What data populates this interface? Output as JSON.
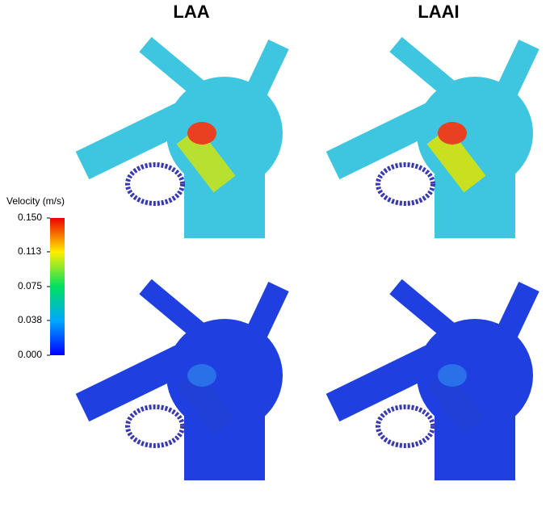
{
  "columns": [
    "LAA",
    "LAAI"
  ],
  "colorbar": {
    "title": "Velocity (m/s)",
    "range": [
      0,
      0.15
    ],
    "ticks": [
      {
        "value": 0.15,
        "label": "0.150"
      },
      {
        "value": 0.113,
        "label": "0.113"
      },
      {
        "value": 0.075,
        "label": "0.075"
      },
      {
        "value": 0.038,
        "label": "0.038"
      },
      {
        "value": 0,
        "label": "0.000"
      }
    ]
  }
}
